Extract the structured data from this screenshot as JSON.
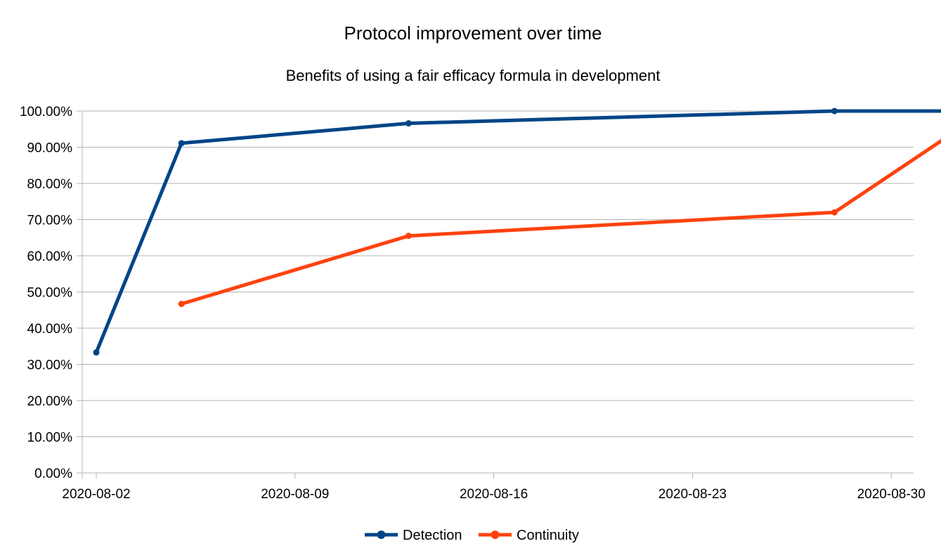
{
  "chart_data": {
    "type": "line",
    "title": "Protocol improvement over time",
    "subtitle": "Benefits of using a fair efficacy formula in development",
    "xlabel": "",
    "ylabel": "",
    "x_ticks": [
      "2020-08-02",
      "2020-08-09",
      "2020-08-16",
      "2020-08-23",
      "2020-08-30"
    ],
    "x_range": [
      "2020-08-02",
      "2020-08-30"
    ],
    "y_ticks": [
      "0.00%",
      "10.00%",
      "20.00%",
      "30.00%",
      "40.00%",
      "50.00%",
      "60.00%",
      "70.00%",
      "80.00%",
      "90.00%",
      "100.00%"
    ],
    "ylim": [
      0,
      100
    ],
    "grid": "horizontal",
    "legend_position": "bottom",
    "series": [
      {
        "name": "Detection",
        "color": "#004586",
        "points": [
          {
            "x": "2020-08-02",
            "y": 33.3
          },
          {
            "x": "2020-08-05",
            "y": 91.1
          },
          {
            "x": "2020-08-13",
            "y": 96.6
          },
          {
            "x": "2020-08-28",
            "y": 100.0
          },
          {
            "x": "2020-09-01",
            "y": 100.0
          }
        ]
      },
      {
        "name": "Continuity",
        "color": "#ff420e",
        "points": [
          {
            "x": "2020-08-05",
            "y": 46.7
          },
          {
            "x": "2020-08-13",
            "y": 65.5
          },
          {
            "x": "2020-08-28",
            "y": 72.0
          },
          {
            "x": "2020-09-01",
            "y": 93.0
          }
        ]
      }
    ]
  }
}
